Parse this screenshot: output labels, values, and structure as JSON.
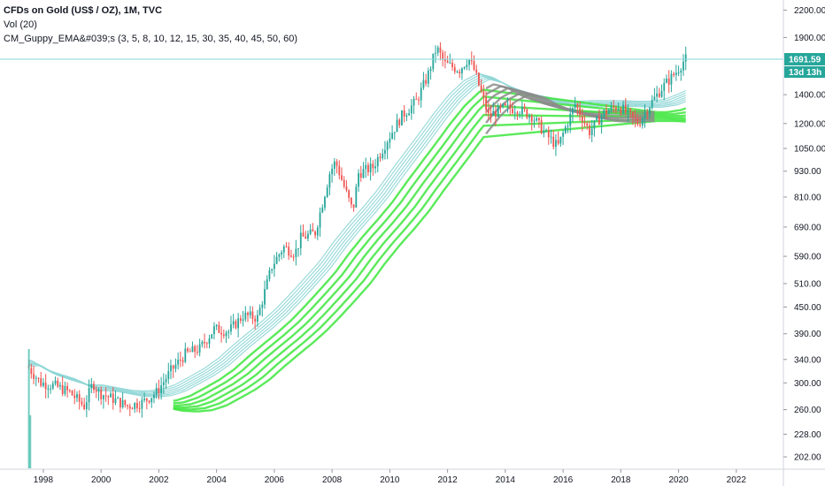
{
  "legend": {
    "title": "CFDs on Gold (US$ / OZ), 1M, TVC",
    "volume": "Vol (20)",
    "indicator": "CM_Guppy_EMA&#039;s (3, 5, 8, 10, 12, 15, 30, 35, 40, 45, 50, 60)"
  },
  "price_axis": {
    "ticks": [
      "2200.00",
      "1900.00",
      "1400.00",
      "1200.00",
      "1050.00",
      "930.00",
      "810.00",
      "690.00",
      "590.00",
      "510.00",
      "450.00",
      "390.00",
      "340.00",
      "300.00",
      "260.00",
      "228.00",
      "202.00"
    ]
  },
  "time_axis": {
    "ticks": [
      "1998",
      "2000",
      "2002",
      "2004",
      "2006",
      "2008",
      "2010",
      "2012",
      "2014",
      "2016",
      "2018",
      "2020",
      "2022"
    ]
  },
  "price_tags": {
    "last_price": "1691.59",
    "countdown": "13d 13h"
  },
  "colors": {
    "up": "#26a69a",
    "down": "#ef5350",
    "fast_ema": "#8fd6d6",
    "slow_ema_bull": "#3ee63e",
    "slow_ema_bear": "#8c8c8c",
    "price_line": "#80d8d8",
    "volume": "#4dbfb0"
  },
  "chart_data": {
    "type": "line",
    "title": "CFDs on Gold (US$ / OZ), 1M, TVC",
    "scale": "log",
    "ylim": [
      190,
      2300
    ],
    "xlim": [
      1996.5,
      2023.6
    ],
    "last_price": 1691.59,
    "series": [
      {
        "name": "CFDs on Gold (US$ / OZ)",
        "x": [
          1997.5,
          1998.0,
          1998.5,
          1999.0,
          1999.5,
          1999.8,
          2000.0,
          2000.5,
          2001.0,
          2001.5,
          2002.0,
          2002.5,
          2003.0,
          2003.5,
          2004.0,
          2004.5,
          2005.0,
          2005.5,
          2006.0,
          2006.4,
          2006.8,
          2007.0,
          2007.5,
          2008.0,
          2008.2,
          2008.8,
          2009.0,
          2009.5,
          2010.0,
          2010.5,
          2011.0,
          2011.4,
          2011.7,
          2012.0,
          2012.5,
          2012.8,
          2013.0,
          2013.5,
          2014.0,
          2014.5,
          2015.0,
          2015.5,
          2015.9,
          2016.5,
          2017.0,
          2017.5,
          2018.0,
          2018.7,
          2019.0,
          2019.5,
          2020.0,
          2020.3
        ],
        "values": [
          330,
          300,
          295,
          285,
          265,
          300,
          285,
          275,
          265,
          270,
          285,
          320,
          350,
          360,
          400,
          395,
          430,
          425,
          560,
          620,
          600,
          650,
          670,
          920,
          980,
          750,
          920,
          950,
          1100,
          1250,
          1350,
          1550,
          1800,
          1650,
          1600,
          1700,
          1600,
          1250,
          1300,
          1300,
          1250,
          1130,
          1060,
          1330,
          1150,
          1270,
          1320,
          1200,
          1300,
          1450,
          1580,
          1691.59
        ]
      },
      {
        "name": "CM_Guppy_EMA's (3, 5, 8, 10, 12, 15, 30, 35, 40, 45, 50, 60)",
        "x": [
          1997.5,
          1998.0,
          1998.5,
          1999.0,
          1999.5,
          2000.0,
          2000.5,
          2001.0,
          2001.5,
          2002.0,
          2002.5,
          2003.0,
          2003.5,
          2004.0,
          2004.5,
          2005.0,
          2005.5,
          2006.0,
          2006.5,
          2007.0,
          2007.5,
          2008.0,
          2008.5,
          2009.0,
          2009.5,
          2010.0,
          2010.5,
          2011.0,
          2011.5,
          2012.0,
          2012.5,
          2013.0,
          2013.5,
          2014.0,
          2014.5,
          2015.0,
          2015.5,
          2016.0,
          2016.5,
          2017.0,
          2017.5,
          2018.0,
          2018.5,
          2019.0,
          2019.5,
          2020.0,
          2020.3
        ],
        "values": [
          320,
          305,
          297,
          290,
          280,
          280,
          276,
          272,
          271,
          273,
          280,
          292,
          305,
          322,
          345,
          368,
          392,
          420,
          455,
          495,
          540,
          600,
          660,
          720,
          790,
          880,
          975,
          1080,
          1200,
          1320,
          1420,
          1480,
          1450,
          1390,
          1350,
          1320,
          1300,
          1280,
          1275,
          1280,
          1280,
          1280,
          1275,
          1275,
          1290,
          1330,
          1360
        ]
      }
    ],
    "volume": {
      "x": [
        1997.5,
        1997.55
      ],
      "bars": [
        "tall",
        "tall"
      ]
    }
  }
}
